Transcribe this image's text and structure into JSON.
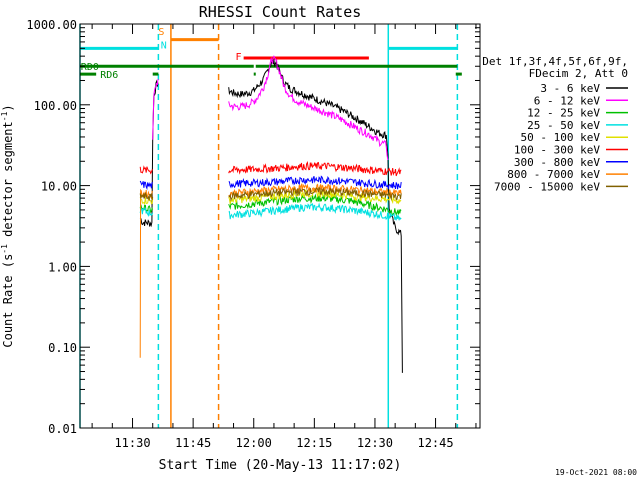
{
  "chart_data": {
    "type": "line",
    "title": "RHESSI Count Rates",
    "xlabel": "Start Time (20-May-13 11:17:02)",
    "ylabel_main": "Count Rate (s",
    "ylabel_sup1": "-1",
    "ylabel_mid": " detector segment",
    "ylabel_sup2": "-1",
    "ylabel_end": ")",
    "footer": "19-Oct-2021 08:00",
    "yscale": "log",
    "ylim": [
      0.01,
      1000
    ],
    "xlim_minutes": [
      17.0,
      116.0
    ],
    "x_ticks": [
      {
        "label": "11:30",
        "minute": 30
      },
      {
        "label": "11:45",
        "minute": 45
      },
      {
        "label": "12:00",
        "minute": 60
      },
      {
        "label": "12:15",
        "minute": 75
      },
      {
        "label": "12:30",
        "minute": 90
      },
      {
        "label": "12:45",
        "minute": 105
      }
    ],
    "y_ticks": [
      {
        "label": "1000.00",
        "value": 1000
      },
      {
        "label": "100.00",
        "value": 100
      },
      {
        "label": "10.00",
        "value": 10
      },
      {
        "label": "1.00",
        "value": 1
      },
      {
        "label": "0.10",
        "value": 0.1
      },
      {
        "label": "0.01",
        "value": 0.01
      }
    ],
    "legend_header": [
      "Det 1f,3f,4f,5f,6f,9f,",
      "FDecim 2, Att 0"
    ],
    "legend_placement": "right",
    "series": [
      {
        "name": "3 - 6 keV",
        "color": "#000000",
        "segments": [
          [
            [
              31.9,
              4
            ],
            [
              32.5,
              3.5
            ],
            [
              33.5,
              3.5
            ],
            [
              34.8,
              3.4
            ],
            [
              35.0,
              40
            ],
            [
              35.3,
              130
            ],
            [
              35.8,
              170
            ],
            [
              36.3,
              190
            ]
          ],
          [
            [
              53.8,
              150
            ],
            [
              55,
              140
            ],
            [
              57,
              135
            ],
            [
              58.5,
              140
            ],
            [
              60,
              150
            ],
            [
              61,
              170
            ],
            [
              62.5,
              210
            ],
            [
              63.5,
              270
            ],
            [
              64.5,
              340
            ],
            [
              65.5,
              330
            ],
            [
              66.5,
              250
            ],
            [
              67.5,
              190
            ],
            [
              69,
              160
            ],
            [
              71,
              145
            ],
            [
              74,
              125
            ],
            [
              78,
              105
            ],
            [
              82,
              85
            ],
            [
              86,
              65
            ],
            [
              89,
              52
            ],
            [
              91,
              45
            ],
            [
              92.8,
              42
            ],
            [
              93.2,
              25
            ],
            [
              93.5,
              5
            ],
            [
              95,
              3
            ],
            [
              96.5,
              2.5
            ],
            [
              96.8,
              0.05
            ]
          ]
        ]
      },
      {
        "name": "6 - 12 keV",
        "color": "#ff00ff",
        "segments": [
          [
            [
              35.0,
              40
            ],
            [
              35.3,
              130
            ],
            [
              35.8,
              175
            ],
            [
              36.3,
              200
            ]
          ],
          [
            [
              53.8,
              100
            ],
            [
              55,
              95
            ],
            [
              57,
              95
            ],
            [
              58.5,
              100
            ],
            [
              60,
              110
            ],
            [
              61,
              125
            ],
            [
              62.5,
              170
            ],
            [
              63.5,
              240
            ],
            [
              64.5,
              370
            ],
            [
              65.5,
              350
            ],
            [
              66.5,
              250
            ],
            [
              67.5,
              170
            ],
            [
              69,
              130
            ],
            [
              71,
              110
            ],
            [
              74,
              95
            ],
            [
              78,
              80
            ],
            [
              82,
              65
            ],
            [
              86,
              50
            ],
            [
              89,
              42
            ],
            [
              91,
              35
            ],
            [
              92.8,
              32
            ],
            [
              93.2,
              20
            ]
          ]
        ]
      },
      {
        "name": "12 - 25 keV",
        "color": "#00c000",
        "segments": [
          [
            [
              31.9,
              5.5
            ],
            [
              33,
              5.2
            ],
            [
              34.5,
              5
            ],
            [
              35.0,
              5
            ]
          ],
          [
            [
              53.8,
              5.5
            ],
            [
              60,
              6
            ],
            [
              66,
              6.5
            ],
            [
              72,
              7
            ],
            [
              78,
              7
            ],
            [
              84,
              6.5
            ],
            [
              90,
              5.5
            ],
            [
              93.5,
              5
            ],
            [
              96.5,
              4.5
            ]
          ]
        ]
      },
      {
        "name": "25 - 50 keV",
        "color": "#00e0e0",
        "segments": [
          [
            [
              31.9,
              5
            ],
            [
              33,
              4.8
            ],
            [
              34.5,
              4.6
            ],
            [
              35.0,
              4.6
            ]
          ],
          [
            [
              53.8,
              4.3
            ],
            [
              60,
              4.6
            ],
            [
              66,
              5
            ],
            [
              72,
              5.4
            ],
            [
              78,
              5.4
            ],
            [
              84,
              5
            ],
            [
              90,
              4.5
            ],
            [
              93.5,
              4.2
            ],
            [
              96.5,
              3.8
            ]
          ]
        ]
      },
      {
        "name": "50 - 100 keV",
        "color": "#e0e000",
        "segments": [
          [
            [
              31.9,
              6.8
            ],
            [
              33,
              6.6
            ],
            [
              34.5,
              6.5
            ],
            [
              35.0,
              6.5
            ]
          ],
          [
            [
              53.8,
              6.6
            ],
            [
              60,
              7
            ],
            [
              66,
              7.5
            ],
            [
              72,
              8
            ],
            [
              78,
              8
            ],
            [
              84,
              7.5
            ],
            [
              90,
              7
            ],
            [
              93.5,
              6.8
            ],
            [
              96.5,
              6.5
            ]
          ]
        ]
      },
      {
        "name": "100 - 300 keV",
        "color": "#ff0000",
        "segments": [
          [
            [
              31.9,
              16
            ],
            [
              33,
              15.5
            ],
            [
              34.5,
              15.5
            ],
            [
              35.0,
              15.5
            ]
          ],
          [
            [
              53.8,
              15.5
            ],
            [
              60,
              16
            ],
            [
              66,
              16.5
            ],
            [
              72,
              17.5
            ],
            [
              78,
              17.5
            ],
            [
              84,
              16.5
            ],
            [
              90,
              15.5
            ],
            [
              93.5,
              15
            ],
            [
              96.5,
              14.5
            ]
          ]
        ]
      },
      {
        "name": "300 - 800 keV",
        "color": "#0000ff",
        "segments": [
          [
            [
              31.9,
              10.5
            ],
            [
              33,
              10.2
            ],
            [
              34.5,
              10
            ],
            [
              35.0,
              10
            ]
          ],
          [
            [
              53.8,
              10.5
            ],
            [
              60,
              10.8
            ],
            [
              66,
              11.2
            ],
            [
              72,
              11.8
            ],
            [
              78,
              11.8
            ],
            [
              84,
              11.2
            ],
            [
              90,
              10.5
            ],
            [
              93.5,
              10.2
            ],
            [
              96.5,
              10
            ]
          ]
        ]
      },
      {
        "name": "800 - 7000 keV",
        "color": "#ff8000",
        "segments": [
          [
            [
              31.9,
              0.08
            ],
            [
              32,
              8
            ],
            [
              33,
              8
            ],
            [
              34.5,
              7.8
            ],
            [
              35.0,
              7.8
            ]
          ],
          [
            [
              53.8,
              8
            ],
            [
              60,
              8.5
            ],
            [
              66,
              9
            ],
            [
              72,
              9.3
            ],
            [
              78,
              9.3
            ],
            [
              84,
              9
            ],
            [
              90,
              8.5
            ],
            [
              93.5,
              8.2
            ],
            [
              96.5,
              8
            ]
          ]
        ]
      },
      {
        "name": "7000 - 15000 keV",
        "color": "#806000",
        "segments": [
          [
            [
              31.9,
              7.5
            ],
            [
              33,
              7.3
            ],
            [
              34.5,
              7.2
            ],
            [
              35.0,
              7.2
            ]
          ],
          [
            [
              53.8,
              7.4
            ],
            [
              60,
              7.8
            ],
            [
              66,
              8.2
            ],
            [
              72,
              8.5
            ],
            [
              78,
              8.5
            ],
            [
              84,
              8.2
            ],
            [
              90,
              7.8
            ],
            [
              93.5,
              7.6
            ],
            [
              96.5,
              7.4
            ]
          ]
        ]
      }
    ],
    "vertical_markers": [
      {
        "minute": 17.0,
        "color": "#00e0e0",
        "style": "solid"
      },
      {
        "minute": 36.4,
        "color": "#00e0e0",
        "style": "dashed"
      },
      {
        "minute": 39.5,
        "color": "#ff8000",
        "style": "solid"
      },
      {
        "minute": 51.3,
        "color": "#ff8000",
        "style": "dashed"
      },
      {
        "minute": 93.3,
        "color": "#00e0e0",
        "style": "solid"
      },
      {
        "minute": 110.4,
        "color": "#00e0e0",
        "style": "dashed"
      }
    ],
    "interval_bars": [
      {
        "start": 17.0,
        "end": 36.4,
        "value": 500,
        "color": "#00e0e0"
      },
      {
        "start": 93.3,
        "end": 110.4,
        "value": 500,
        "color": "#00e0e0"
      },
      {
        "start": 39.5,
        "end": 51.3,
        "value": 640,
        "color": "#ff8000"
      },
      {
        "start": 57.5,
        "end": 88.5,
        "value": 380,
        "color": "#ff0000"
      },
      {
        "start": 17.0,
        "end": 60.0,
        "value": 300,
        "color": "#008000"
      },
      {
        "start": 60.5,
        "end": 110.4,
        "value": 300,
        "color": "#008000"
      },
      {
        "start": 17.0,
        "end": 21.0,
        "value": 240,
        "color": "#008000"
      },
      {
        "start": 35.0,
        "end": 36.4,
        "value": 240,
        "color": "#008000"
      },
      {
        "start": 60.0,
        "end": 60.5,
        "value": 240,
        "color": "#008000"
      },
      {
        "start": 110.0,
        "end": 111.5,
        "value": 240,
        "color": "#008000"
      }
    ],
    "bar_labels": [
      {
        "text": "S",
        "minute": 36.4,
        "value": 820,
        "color": "#ff8000"
      },
      {
        "text": "N",
        "minute": 37.0,
        "value": 560,
        "color": "#00e0e0"
      },
      {
        "text": "F",
        "minute": 55.5,
        "value": 400,
        "color": "#ff0000"
      },
      {
        "text": "RD0",
        "minute": 17.2,
        "value": 300,
        "color": "#008000"
      },
      {
        "text": "RD6",
        "minute": 22.0,
        "value": 240,
        "color": "#008000"
      }
    ]
  }
}
